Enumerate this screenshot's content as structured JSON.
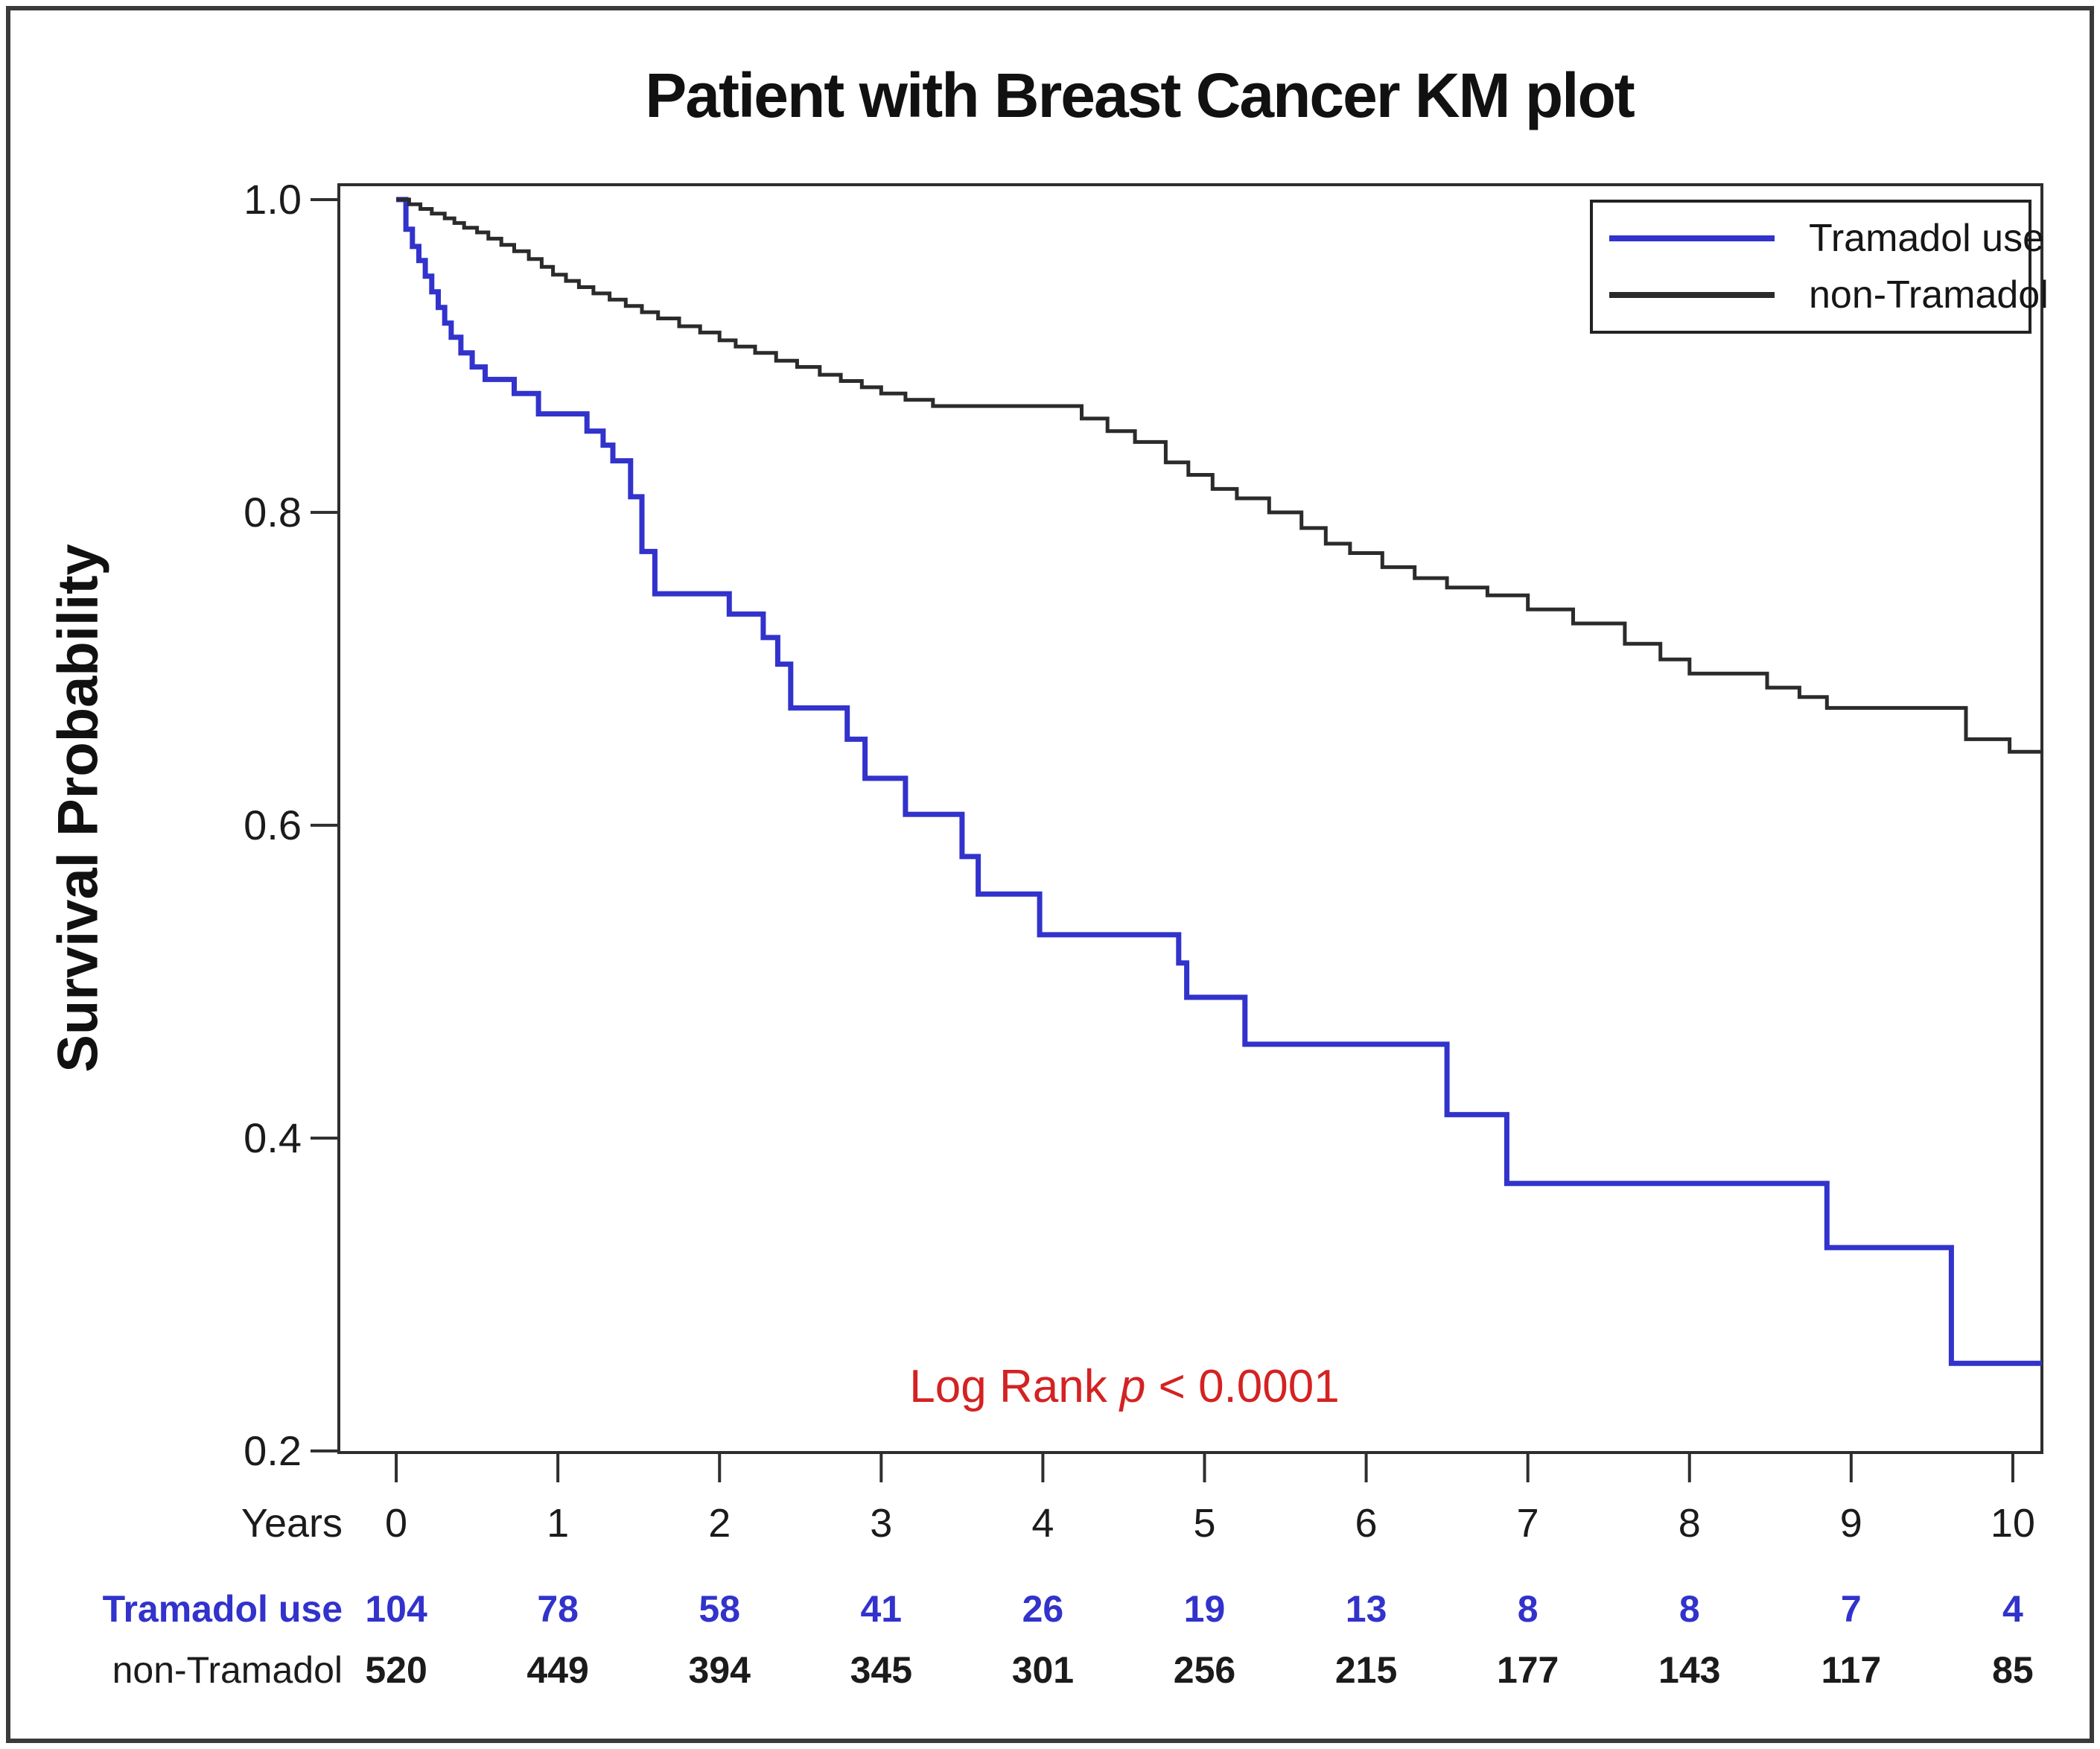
{
  "figure": {
    "background": "#ffffff",
    "border_color": "#3a3a3a",
    "frame_color": "#2e2e2e",
    "text_color": "#1b1b1b"
  },
  "chart_data": {
    "type": "line",
    "subtype": "kaplan-meier-step",
    "title": "Patient with Breast Cancer KM plot",
    "xlabel": "Years",
    "ylabel": "Survival Probability",
    "xlim": [
      -0.355,
      10.18
    ],
    "ylim": [
      0.199,
      1.0095
    ],
    "x_ticks": [
      0,
      1,
      2,
      3,
      4,
      5,
      6,
      7,
      8,
      9,
      10
    ],
    "y_ticks": [
      "1.0",
      "0.8",
      "0.6",
      "0.4",
      "0.2"
    ],
    "grid": false,
    "legend_position": "top-right-inside",
    "annotation": {
      "prefix": "Log Rank ",
      "italic": "p",
      "suffix": " < 0.0001",
      "color": "#d42222"
    },
    "series": [
      {
        "name": "Tramadol use",
        "color": "#3232cc",
        "stroke_width": 7,
        "end_t": 10.18,
        "points": [
          [
            0.0,
            1.0
          ],
          [
            0.06,
            0.981
          ],
          [
            0.1,
            0.97
          ],
          [
            0.14,
            0.961
          ],
          [
            0.18,
            0.951
          ],
          [
            0.22,
            0.941
          ],
          [
            0.26,
            0.931
          ],
          [
            0.3,
            0.921
          ],
          [
            0.34,
            0.912
          ],
          [
            0.4,
            0.902
          ],
          [
            0.47,
            0.893
          ],
          [
            0.55,
            0.885
          ],
          [
            0.73,
            0.876
          ],
          [
            0.88,
            0.863
          ],
          [
            1.18,
            0.852
          ],
          [
            1.28,
            0.843
          ],
          [
            1.34,
            0.833
          ],
          [
            1.45,
            0.81
          ],
          [
            1.52,
            0.775
          ],
          [
            1.6,
            0.748
          ],
          [
            2.06,
            0.735
          ],
          [
            2.27,
            0.72
          ],
          [
            2.36,
            0.703
          ],
          [
            2.44,
            0.675
          ],
          [
            2.79,
            0.655
          ],
          [
            2.9,
            0.63
          ],
          [
            3.15,
            0.607
          ],
          [
            3.5,
            0.58
          ],
          [
            3.6,
            0.556
          ],
          [
            3.98,
            0.53
          ],
          [
            4.84,
            0.512
          ],
          [
            4.89,
            0.49
          ],
          [
            5.25,
            0.46
          ],
          [
            6.5,
            0.415
          ],
          [
            6.87,
            0.371
          ],
          [
            8.85,
            0.33
          ],
          [
            9.62,
            0.256
          ]
        ]
      },
      {
        "name": "non-Tramadol",
        "color": "#2b2b2b",
        "stroke_width": 5,
        "end_t": 10.18,
        "points": [
          [
            0.0,
            1.0
          ],
          [
            0.08,
            0.997
          ],
          [
            0.15,
            0.994
          ],
          [
            0.22,
            0.991
          ],
          [
            0.3,
            0.988
          ],
          [
            0.36,
            0.985
          ],
          [
            0.42,
            0.982
          ],
          [
            0.5,
            0.979
          ],
          [
            0.57,
            0.975
          ],
          [
            0.65,
            0.971
          ],
          [
            0.73,
            0.967
          ],
          [
            0.82,
            0.962
          ],
          [
            0.9,
            0.957
          ],
          [
            0.97,
            0.952
          ],
          [
            1.05,
            0.948
          ],
          [
            1.13,
            0.944
          ],
          [
            1.22,
            0.94
          ],
          [
            1.32,
            0.936
          ],
          [
            1.42,
            0.932
          ],
          [
            1.52,
            0.928
          ],
          [
            1.62,
            0.924
          ],
          [
            1.75,
            0.919
          ],
          [
            1.88,
            0.915
          ],
          [
            2.0,
            0.91
          ],
          [
            2.1,
            0.906
          ],
          [
            2.22,
            0.902
          ],
          [
            2.35,
            0.897
          ],
          [
            2.48,
            0.893
          ],
          [
            2.62,
            0.888
          ],
          [
            2.75,
            0.884
          ],
          [
            2.88,
            0.88
          ],
          [
            3.0,
            0.876
          ],
          [
            3.15,
            0.872
          ],
          [
            3.32,
            0.868
          ],
          [
            4.24,
            0.86
          ],
          [
            4.4,
            0.852
          ],
          [
            4.57,
            0.845
          ],
          [
            4.76,
            0.832
          ],
          [
            4.9,
            0.824
          ],
          [
            5.05,
            0.815
          ],
          [
            5.2,
            0.809
          ],
          [
            5.4,
            0.8
          ],
          [
            5.6,
            0.79
          ],
          [
            5.75,
            0.78
          ],
          [
            5.9,
            0.774
          ],
          [
            6.1,
            0.765
          ],
          [
            6.3,
            0.758
          ],
          [
            6.5,
            0.752
          ],
          [
            6.75,
            0.747
          ],
          [
            7.0,
            0.738
          ],
          [
            7.28,
            0.729
          ],
          [
            7.6,
            0.716
          ],
          [
            7.82,
            0.706
          ],
          [
            8.0,
            0.697
          ],
          [
            8.48,
            0.688
          ],
          [
            8.68,
            0.682
          ],
          [
            8.85,
            0.675
          ],
          [
            9.71,
            0.655
          ],
          [
            9.98,
            0.647
          ]
        ]
      }
    ],
    "at_risk": {
      "axis_label": "Years",
      "ticks": [
        0,
        1,
        2,
        3,
        4,
        5,
        6,
        7,
        8,
        9,
        10
      ],
      "rows": [
        {
          "label": "Tramadol use",
          "color": "#3232cc",
          "bold_label": true,
          "counts": [
            104,
            78,
            58,
            41,
            26,
            19,
            13,
            8,
            8,
            7,
            4
          ]
        },
        {
          "label": "non-Tramadol",
          "color": "#1b1b1b",
          "bold_label": false,
          "counts": [
            520,
            449,
            394,
            345,
            301,
            256,
            215,
            177,
            143,
            117,
            85
          ]
        }
      ]
    }
  },
  "legend": {
    "items": [
      {
        "label": "Tramadol use",
        "color": "#3232cc"
      },
      {
        "label": "non-Tramadol",
        "color": "#2b2b2b"
      }
    ]
  }
}
